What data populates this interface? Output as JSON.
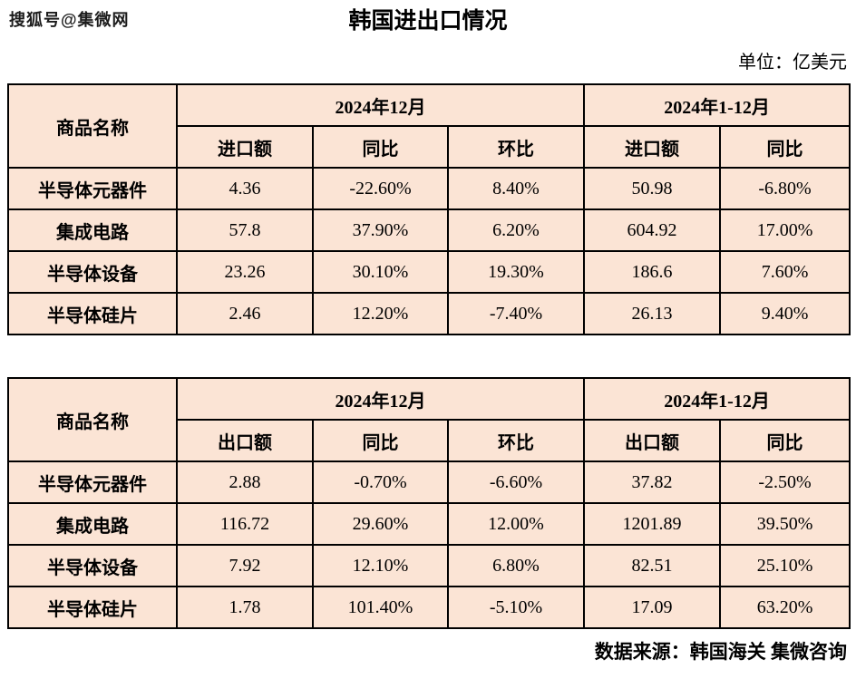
{
  "watermark": "搜狐号@集微网",
  "title": "韩国进出口情况",
  "unit_label": "单位：亿美元",
  "footer": "数据来源：韩国海关 集微咨询",
  "colors": {
    "cell_bg": "#fbe4d5",
    "border": "#000000",
    "text": "#000000",
    "page_bg": "#ffffff"
  },
  "chart_data": [
    {
      "type": "table",
      "corner_header": "商品名称",
      "period_headers": [
        "2024年12月",
        "2024年1-12月"
      ],
      "sub_headers": [
        "进口额",
        "同比",
        "环比",
        "进口额",
        "同比"
      ],
      "rows": [
        {
          "name": "半导体元器件",
          "values": [
            "4.36",
            "-22.60%",
            "8.40%",
            "50.98",
            "-6.80%"
          ]
        },
        {
          "name": "集成电路",
          "values": [
            "57.8",
            "37.90%",
            "6.20%",
            "604.92",
            "17.00%"
          ]
        },
        {
          "name": "半导体设备",
          "values": [
            "23.26",
            "30.10%",
            "19.30%",
            "186.6",
            "7.60%"
          ]
        },
        {
          "name": "半导体硅片",
          "values": [
            "2.46",
            "12.20%",
            "-7.40%",
            "26.13",
            "9.40%"
          ]
        }
      ]
    },
    {
      "type": "table",
      "corner_header": "商品名称",
      "period_headers": [
        "2024年12月",
        "2024年1-12月"
      ],
      "sub_headers": [
        "出口额",
        "同比",
        "环比",
        "出口额",
        "同比"
      ],
      "rows": [
        {
          "name": "半导体元器件",
          "values": [
            "2.88",
            "-0.70%",
            "-6.60%",
            "37.82",
            "-2.50%"
          ]
        },
        {
          "name": "集成电路",
          "values": [
            "116.72",
            "29.60%",
            "12.00%",
            "1201.89",
            "39.50%"
          ]
        },
        {
          "name": "半导体设备",
          "values": [
            "7.92",
            "12.10%",
            "6.80%",
            "82.51",
            "25.10%"
          ]
        },
        {
          "name": "半导体硅片",
          "values": [
            "1.78",
            "101.40%",
            "-5.10%",
            "17.09",
            "63.20%"
          ]
        }
      ]
    }
  ]
}
